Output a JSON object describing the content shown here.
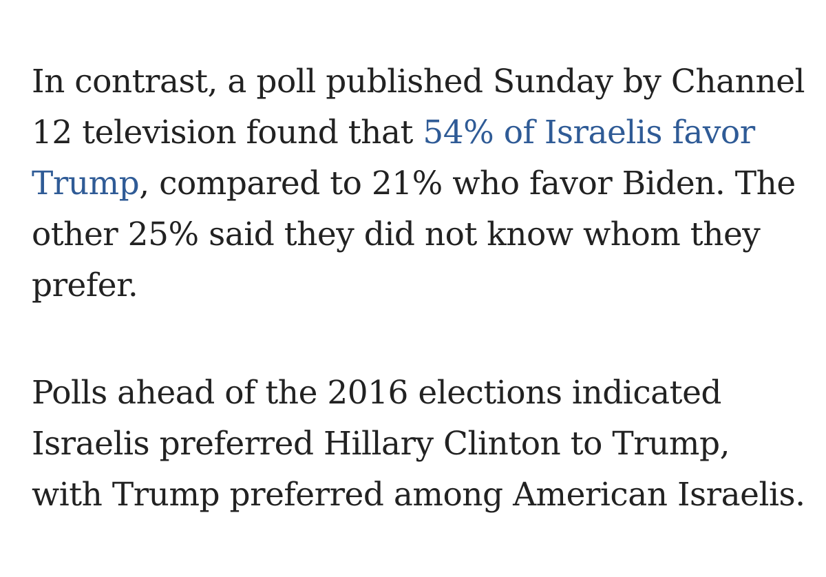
{
  "article": {
    "paragraph1": {
      "l1": "In contrast, a poll published Sunday by Channel",
      "l2_pre": "12 television found that ",
      "link_a": "54% of Israelis favor",
      "link_b": "Trump",
      "l3_post": ", compared to 21% who favor Biden. The",
      "l4": "other 25% said they did not know whom they",
      "l5": "prefer."
    },
    "paragraph2": {
      "l1": "Polls ahead of the 2016 elections indicated",
      "l2": "Israelis preferred Hillary Clinton to Trump,",
      "l3": "with Trump preferred among American Israelis."
    },
    "colors": {
      "text": "#222222",
      "link": "#2f5b96",
      "background": "#ffffff"
    }
  }
}
